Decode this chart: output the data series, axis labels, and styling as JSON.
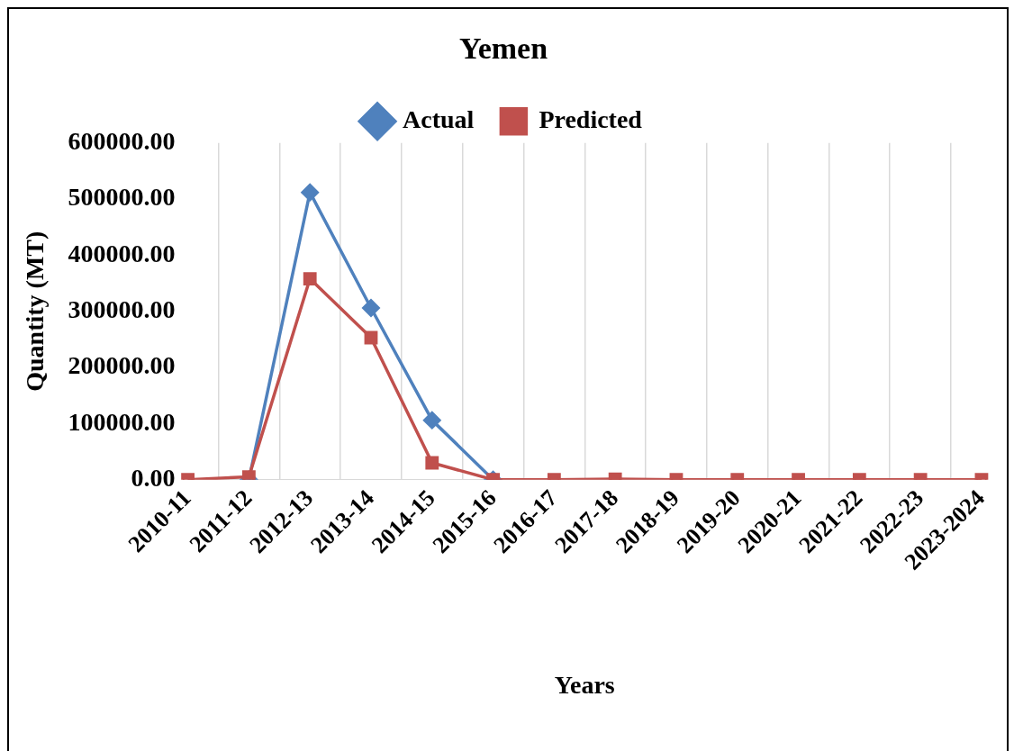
{
  "chart_data": {
    "type": "line",
    "title": "Yemen",
    "xlabel": "Years",
    "ylabel": "Quantity (MT)",
    "categories": [
      "2010-11",
      "2011-12",
      "2012-13",
      "2013-14",
      "2014-15",
      "2015-16",
      "2016-17",
      "2017-18",
      "2018-19",
      "2019-20",
      "2020-21",
      "2021-22",
      "2022-23",
      "2023-2024"
    ],
    "series": [
      {
        "name": "Actual",
        "color": "#4f81bd",
        "marker": "diamond",
        "values": [
          null,
          0,
          512000,
          306000,
          106000,
          0,
          null,
          null,
          null,
          null,
          null,
          null,
          null,
          null
        ]
      },
      {
        "name": "Predicted",
        "color": "#c0504d",
        "marker": "square",
        "values": [
          0,
          5000,
          358000,
          253000,
          30000,
          0,
          0,
          1000,
          0,
          0,
          0,
          0,
          0,
          0
        ]
      }
    ],
    "ylim": [
      0,
      600000
    ],
    "yticks": [
      {
        "value": 0,
        "label": "0.00"
      },
      {
        "value": 100000,
        "label": "100000.00"
      },
      {
        "value": 200000,
        "label": "200000.00"
      },
      {
        "value": 300000,
        "label": "300000.00"
      },
      {
        "value": 400000,
        "label": "400000.00"
      },
      {
        "value": 500000,
        "label": "500000.00"
      },
      {
        "value": 600000,
        "label": "600000.00"
      }
    ],
    "grid": "x",
    "legend": "top",
    "line_style": "solid"
  }
}
